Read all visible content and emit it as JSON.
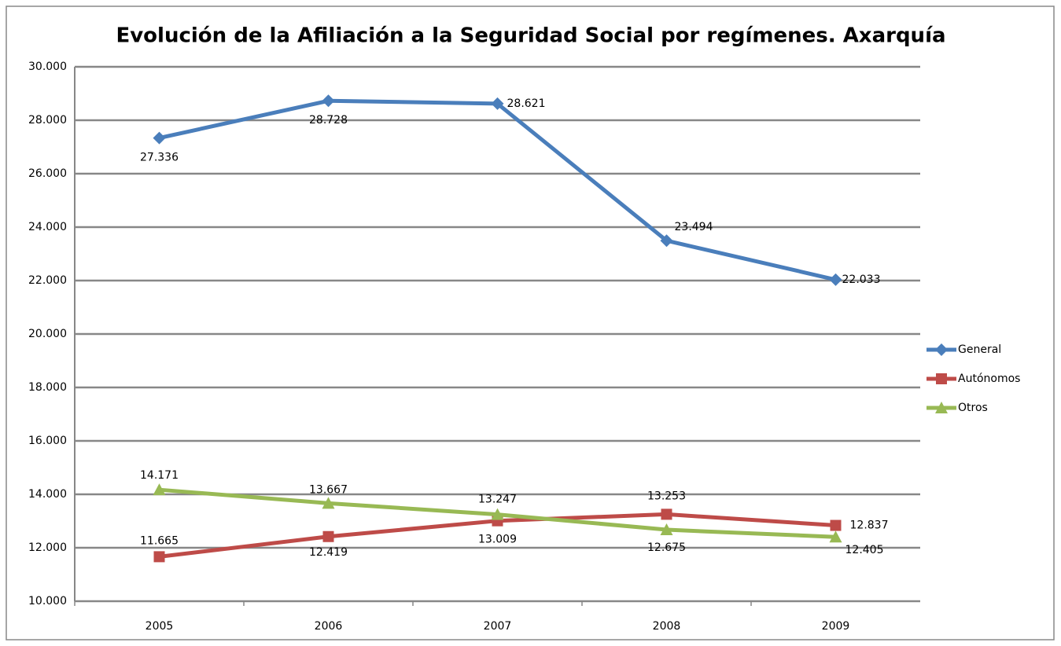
{
  "chart_data": {
    "type": "line",
    "title": "Evolución de la Afiliación a la Seguridad Social por regímenes. Axarquía",
    "categories": [
      "2005",
      "2006",
      "2007",
      "2008",
      "2009"
    ],
    "series": [
      {
        "name": "General",
        "color": "#4a7ebb",
        "marker": "diamond",
        "values": [
          27336,
          28728,
          28621,
          23494,
          22033
        ],
        "value_labels": [
          "27.336",
          "28.728",
          "28.621",
          "23.494",
          "22.033"
        ]
      },
      {
        "name": "Autónomos",
        "color": "#be4b48",
        "marker": "square",
        "values": [
          11665,
          12419,
          13009,
          13253,
          12837
        ],
        "value_labels": [
          "11.665",
          "12.419",
          "13.009",
          "13.253",
          "12.837"
        ]
      },
      {
        "name": "Otros",
        "color": "#98b954",
        "marker": "triangle",
        "values": [
          14171,
          13667,
          13247,
          12675,
          12405
        ],
        "value_labels": [
          "14.171",
          "13.667",
          "13.247",
          "12.675",
          "12.405"
        ]
      }
    ],
    "ylim": [
      10000,
      30000
    ],
    "yticks": [
      {
        "value": 10000,
        "label": "10.000"
      },
      {
        "value": 12000,
        "label": "12.000"
      },
      {
        "value": 14000,
        "label": "14.000"
      },
      {
        "value": 16000,
        "label": "16.000"
      },
      {
        "value": 18000,
        "label": "18.000"
      },
      {
        "value": 20000,
        "label": "20.000"
      },
      {
        "value": 22000,
        "label": "22.000"
      },
      {
        "value": 24000,
        "label": "24.000"
      },
      {
        "value": 26000,
        "label": "26.000"
      },
      {
        "value": 28000,
        "label": "28.000"
      },
      {
        "value": 30000,
        "label": "30.000"
      }
    ],
    "grid": true,
    "legend": "right"
  }
}
